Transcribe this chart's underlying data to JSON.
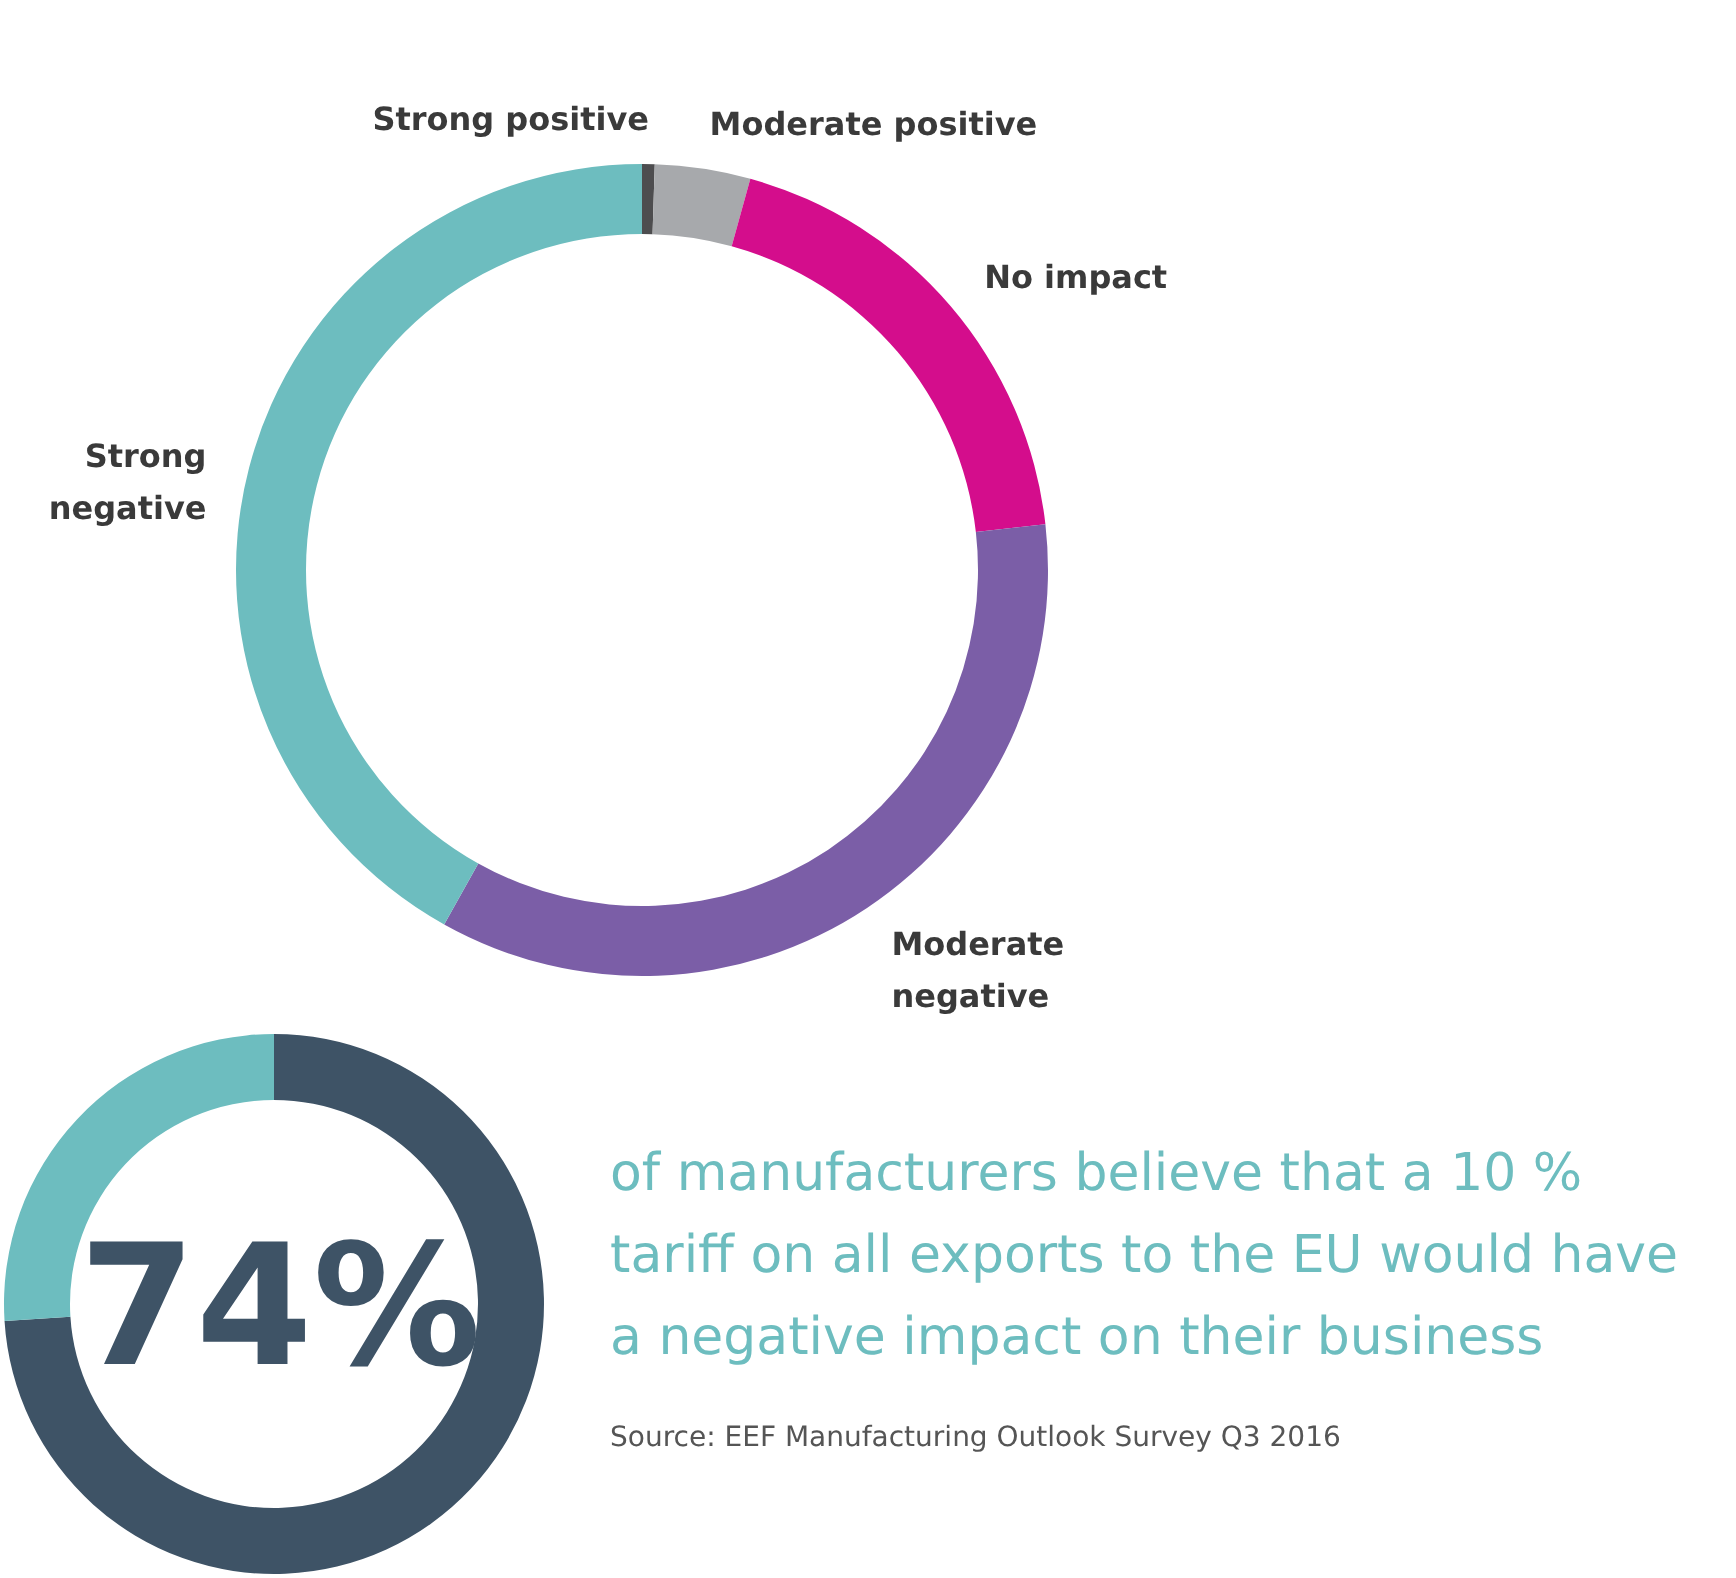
{
  "chart_data": [
    {
      "type": "donut",
      "categories": [
        "Strong positive",
        "Moderate positive",
        "No impact",
        "Moderate negative",
        "Strong negative"
      ],
      "values": [
        0.5,
        3.8,
        18.9,
        34.9,
        41.9
      ],
      "colors": [
        "#4d4d4f",
        "#a7a9ac",
        "#d40d8c",
        "#7b5ea7",
        "#6dbdbf"
      ]
    },
    {
      "type": "donut",
      "categories": [
        null,
        null
      ],
      "values": [
        74,
        26
      ],
      "colors": [
        "#3e5366",
        "#6dbdbf"
      ],
      "annotations": [
        "74%",
        "of manufacturers believe that a 10 % tariff on all exports to the EU would have a negative impact on their business",
        "Source: EEF Manufacturing Outlook Survey Q3 2016"
      ]
    }
  ]
}
